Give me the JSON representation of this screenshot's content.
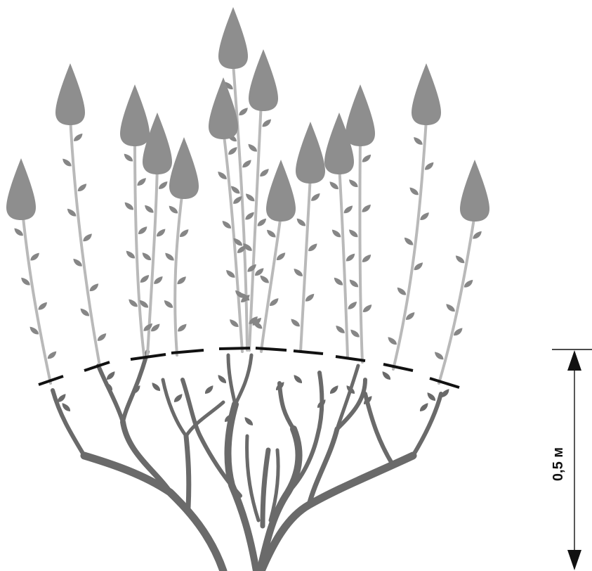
{
  "scale": {
    "label": "0,5 м"
  },
  "colors": {
    "background": "#ffffff",
    "old_wood": "#6a6a6a",
    "young_shoot": "#b9b9b9",
    "bud": "#868686",
    "flower": "#8e8e8e",
    "pruning_line": "#111111",
    "dimension_line": "#111111"
  }
}
